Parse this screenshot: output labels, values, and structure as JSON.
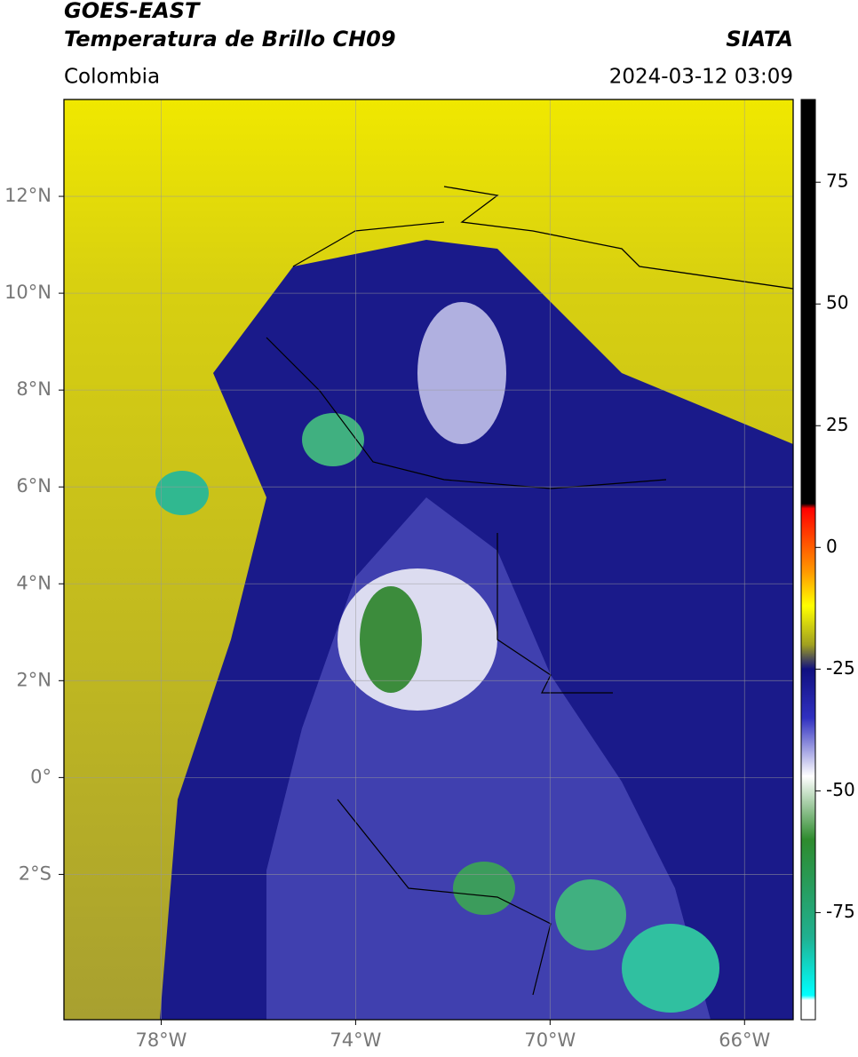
{
  "header": {
    "title": "GOES-EAST",
    "subtitle": "Temperatura de Brillo CH09",
    "source": "SIATA",
    "region": "Colombia",
    "datetime": "2024-03-12 03:09"
  },
  "map": {
    "lonlim": [
      -80,
      -65
    ],
    "latlim": [
      -5,
      14
    ],
    "xticks": [
      {
        "value": -78,
        "label": "78°W"
      },
      {
        "value": -74,
        "label": "74°W"
      },
      {
        "value": -70,
        "label": "70°W"
      },
      {
        "value": -66,
        "label": "66°W"
      }
    ],
    "yticks": [
      {
        "value": 12,
        "label": "12°N"
      },
      {
        "value": 10,
        "label": "10°N"
      },
      {
        "value": 8,
        "label": "8°N"
      },
      {
        "value": 6,
        "label": "6°N"
      },
      {
        "value": 4,
        "label": "4°N"
      },
      {
        "value": 2,
        "label": "2°N"
      },
      {
        "value": 0,
        "label": "0°"
      },
      {
        "value": -2,
        "label": "2°S"
      }
    ],
    "grid": true
  },
  "colorbar": {
    "lim": [
      -97,
      92
    ],
    "ticks": [
      75,
      50,
      25,
      0,
      -25,
      -50,
      -75
    ],
    "stops": [
      {
        "value": 92,
        "color": "#000000"
      },
      {
        "value": 9,
        "color": "#000000"
      },
      {
        "value": 8,
        "color": "#ff0000"
      },
      {
        "value": -5,
        "color": "#ff9900"
      },
      {
        "value": -12,
        "color": "#ffff00"
      },
      {
        "value": -20,
        "color": "#a0a020"
      },
      {
        "value": -25,
        "color": "#101080"
      },
      {
        "value": -35,
        "color": "#3030c0"
      },
      {
        "value": -47,
        "color": "#ffffff"
      },
      {
        "value": -60,
        "color": "#2e8b2e"
      },
      {
        "value": -80,
        "color": "#20b090"
      },
      {
        "value": -92,
        "color": "#00ffff"
      },
      {
        "value": -93,
        "color": "#ffffff"
      },
      {
        "value": -97,
        "color": "#ffffff"
      }
    ]
  }
}
